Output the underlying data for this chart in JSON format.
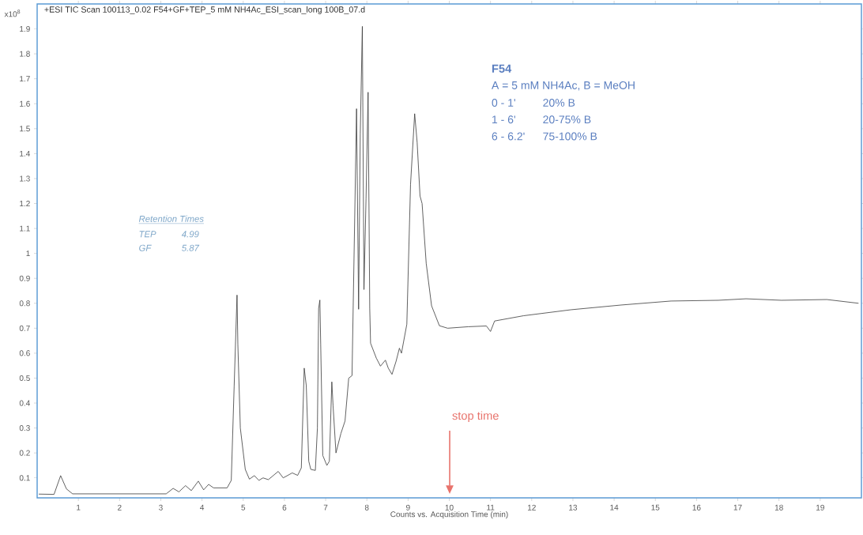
{
  "chart_data": {
    "type": "line",
    "title": "+ESI TIC Scan 100113_0.02 F54+GF+TEP_5 mM NH4Ac_ESI_scan_long 100B_07.d",
    "xlabel": "Counts vs. Acquisition Time (min)",
    "xlim": [
      0,
      20
    ],
    "ylim": [
      0.02,
      2.0
    ],
    "xticks": [
      1,
      2,
      3,
      4,
      5,
      6,
      7,
      8,
      9,
      10,
      11,
      12,
      13,
      14,
      15,
      16,
      17,
      18,
      19
    ],
    "yticks": [
      0.1,
      0.2,
      0.3,
      0.4,
      0.5,
      0.6,
      0.7,
      0.8,
      0.9,
      1,
      1.1,
      1.2,
      1.3,
      1.4,
      1.5,
      1.6,
      1.7,
      1.8,
      1.9
    ],
    "color": "#3a3a3a",
    "line_style": "solid",
    "x": [
      0.04,
      0.41,
      0.57,
      0.71,
      0.86,
      3.13,
      3.3,
      3.44,
      3.6,
      3.74,
      3.91,
      4.04,
      4.16,
      4.28,
      4.61,
      4.71,
      4.78,
      4.85,
      4.87,
      4.93,
      5.05,
      5.15,
      5.27,
      5.38,
      5.48,
      5.61,
      5.85,
      5.97,
      6.19,
      6.32,
      6.41,
      6.48,
      6.53,
      6.59,
      6.64,
      6.75,
      6.8,
      6.83,
      6.86,
      6.88,
      6.93,
      7.03,
      7.09,
      7.15,
      7.18,
      7.25,
      7.37,
      7.47,
      7.56,
      7.64,
      7.75,
      7.8,
      7.84,
      7.89,
      7.93,
      7.98,
      8.03,
      8.07,
      8.09,
      8.23,
      8.33,
      8.45,
      8.52,
      8.61,
      8.71,
      8.79,
      8.84,
      8.97,
      9.06,
      9.16,
      9.22,
      9.29,
      9.34,
      9.44,
      9.57,
      9.76,
      9.96,
      10.46,
      10.9,
      11.0,
      11.1,
      11.8,
      12.95,
      14.17,
      15.38,
      16.53,
      17.2,
      18.06,
      19.16,
      19.93
    ],
    "values": [
      0.035,
      0.034,
      0.109,
      0.056,
      0.036,
      0.036,
      0.058,
      0.044,
      0.069,
      0.049,
      0.087,
      0.052,
      0.074,
      0.06,
      0.06,
      0.09,
      0.467,
      0.833,
      0.635,
      0.3,
      0.134,
      0.095,
      0.109,
      0.09,
      0.1,
      0.093,
      0.126,
      0.1,
      0.12,
      0.11,
      0.14,
      0.54,
      0.47,
      0.167,
      0.134,
      0.13,
      0.3,
      0.78,
      0.813,
      0.635,
      0.19,
      0.15,
      0.167,
      0.485,
      0.39,
      0.2,
      0.278,
      0.328,
      0.5,
      0.51,
      1.58,
      0.776,
      1.478,
      1.91,
      0.855,
      1.22,
      1.646,
      0.78,
      0.64,
      0.58,
      0.548,
      0.572,
      0.54,
      0.515,
      0.568,
      0.62,
      0.6,
      0.716,
      1.277,
      1.56,
      1.445,
      1.23,
      1.2,
      0.96,
      0.79,
      0.71,
      0.7,
      0.706,
      0.709,
      0.687,
      0.729,
      0.75,
      0.774,
      0.793,
      0.809,
      0.812,
      0.818,
      0.812,
      0.815,
      0.8
    ],
    "annotations": [
      "x10$^{8}$",
      "F54",
      "A = 5 mM NH4Ac, B = MeOH",
      "0 - 1'",
      "20% B",
      "1 - 6'",
      "20-75% B",
      "6 - 6.2'",
      "75-100% B",
      "Retention Times",
      "TEP",
      "4.99",
      "GF",
      "5.87",
      "stop time"
    ]
  }
}
